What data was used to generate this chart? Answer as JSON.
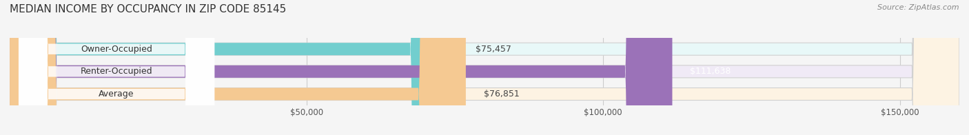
{
  "title": "MEDIAN INCOME BY OCCUPANCY IN ZIP CODE 85145",
  "source": "Source: ZipAtlas.com",
  "categories": [
    "Owner-Occupied",
    "Renter-Occupied",
    "Average"
  ],
  "values": [
    75457,
    111638,
    76851
  ],
  "bar_colors": [
    "#72cece",
    "#9b72b8",
    "#f5c992"
  ],
  "bar_bg_colors": [
    "#e8f8f8",
    "#f0eaf6",
    "#fdf3e3"
  ],
  "value_labels": [
    "$75,457",
    "$111,638",
    "$76,851"
  ],
  "value_label_colors": [
    "#444444",
    "#ffffff",
    "#444444"
  ],
  "xlim": [
    0,
    160000
  ],
  "xticks": [
    50000,
    100000,
    150000
  ],
  "xtick_labels": [
    "$50,000",
    "$100,000",
    "$150,000"
  ],
  "background_color": "#f5f5f5",
  "bar_height": 0.55,
  "title_fontsize": 11,
  "source_fontsize": 8,
  "label_fontsize": 9,
  "tick_fontsize": 8.5
}
